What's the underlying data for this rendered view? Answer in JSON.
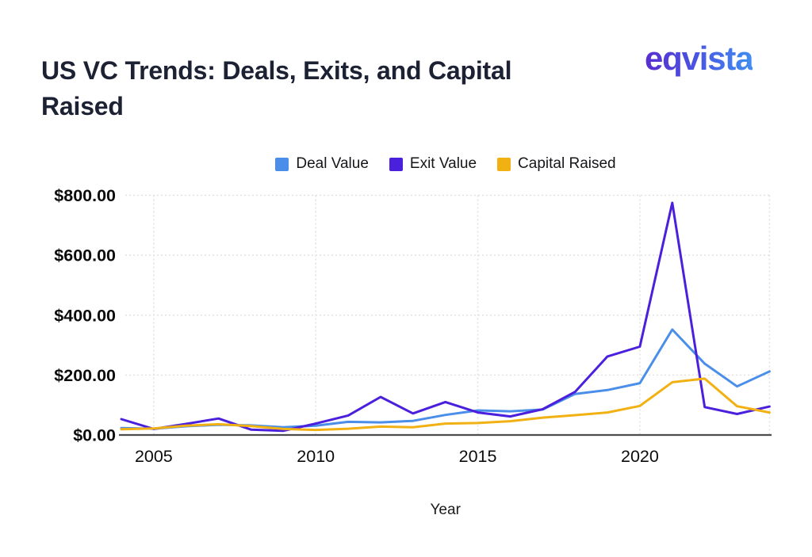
{
  "header": {
    "title": "US VC Trends: Deals, Exits, and Capital Raised"
  },
  "logo": {
    "text": "eqvista",
    "gradient_start_color": "#5a2dd1",
    "gradient_end_color": "#3f8ef2"
  },
  "chart_data": {
    "type": "line",
    "title": "US VC Trends: Deals, Exits, and Capital Raised",
    "xlabel": "Year",
    "ylabel": "",
    "xlim": [
      2004,
      2024
    ],
    "ylim": [
      0,
      800
    ],
    "grid": "dotted",
    "legend_position": "top-center",
    "x": [
      2004,
      2005,
      2006,
      2007,
      2008,
      2009,
      2010,
      2011,
      2012,
      2013,
      2014,
      2015,
      2016,
      2017,
      2018,
      2019,
      2020,
      2021,
      2022,
      2023,
      2024
    ],
    "series": [
      {
        "name": "Deal Value",
        "color": "#4a8ee9",
        "values": [
          23,
          21,
          29,
          34,
          32,
          26,
          31,
          44,
          42,
          47,
          67,
          82,
          79,
          85,
          137,
          150,
          173,
          352,
          238,
          162,
          212
        ]
      },
      {
        "name": "Exit Value",
        "color": "#4b20dd",
        "values": [
          53,
          20,
          37,
          55,
          18,
          14,
          38,
          65,
          127,
          72,
          110,
          75,
          62,
          86,
          144,
          262,
          295,
          775,
          93,
          70,
          95
        ]
      },
      {
        "name": "Capital Raised",
        "color": "#f2b113",
        "values": [
          19,
          22,
          31,
          36,
          30,
          20,
          17,
          21,
          28,
          26,
          38,
          40,
          46,
          58,
          66,
          75,
          97,
          176,
          188,
          96,
          75
        ]
      }
    ],
    "y_ticks": [
      {
        "value": 0,
        "label": "$0.00"
      },
      {
        "value": 200,
        "label": "$200.00"
      },
      {
        "value": 400,
        "label": "$400.00"
      },
      {
        "value": 600,
        "label": "$600.00"
      },
      {
        "value": 800,
        "label": "$800.00"
      }
    ],
    "x_ticks": [
      {
        "value": 2005,
        "label": "2005"
      },
      {
        "value": 2010,
        "label": "2010"
      },
      {
        "value": 2015,
        "label": "2015"
      },
      {
        "value": 2020,
        "label": "2020"
      }
    ],
    "colors": {
      "axis_line": "#4d4d4d",
      "gridline": "#e1e1e1",
      "tick_text": "#0c0c0c"
    }
  }
}
